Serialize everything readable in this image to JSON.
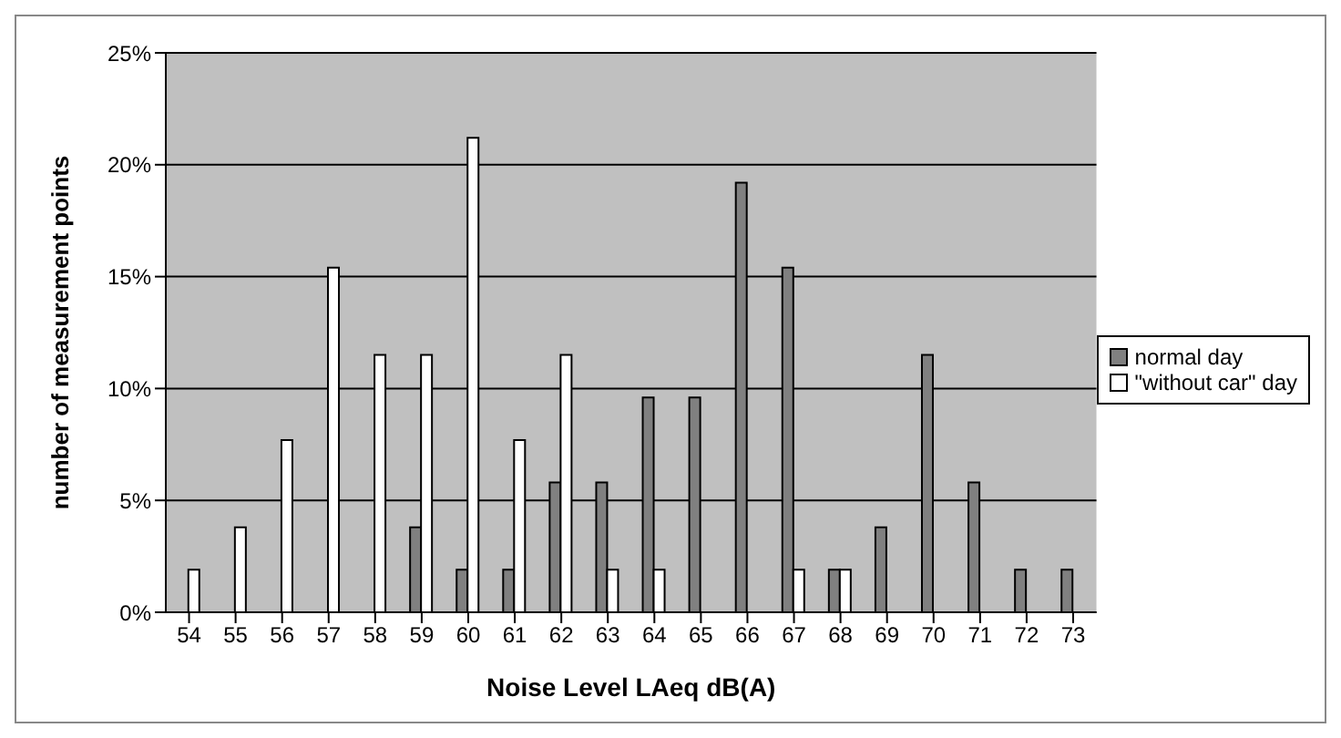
{
  "chart_data": {
    "type": "bar",
    "xlabel": "Noise Level LAeq dB(A)",
    "ylabel": "number of measurement points",
    "categories": [
      "54",
      "55",
      "56",
      "57",
      "58",
      "59",
      "60",
      "61",
      "62",
      "63",
      "64",
      "65",
      "66",
      "67",
      "68",
      "69",
      "70",
      "71",
      "72",
      "73"
    ],
    "series": [
      {
        "name": "normal day",
        "color": "#808080",
        "values": [
          0,
          0,
          0,
          0,
          0,
          3.8,
          1.9,
          1.9,
          5.8,
          5.8,
          9.6,
          9.6,
          19.2,
          15.4,
          1.9,
          3.8,
          11.5,
          5.8,
          1.9,
          1.9
        ]
      },
      {
        "name": "\"without car\" day",
        "color": "#ffffff",
        "values": [
          1.9,
          3.8,
          7.7,
          15.4,
          11.5,
          11.5,
          21.2,
          7.7,
          11.5,
          1.9,
          1.9,
          0,
          0,
          1.9,
          1.9,
          0,
          0,
          0,
          0,
          0
        ]
      }
    ],
    "ylim": [
      0,
      25
    ],
    "yticks": [
      {
        "value": 0,
        "label": "0%"
      },
      {
        "value": 5,
        "label": "5%"
      },
      {
        "value": 10,
        "label": "10%"
      },
      {
        "value": 15,
        "label": "15%"
      },
      {
        "value": 20,
        "label": "20%"
      },
      {
        "value": 25,
        "label": "25%"
      }
    ],
    "grid": "y",
    "legend": "right"
  }
}
